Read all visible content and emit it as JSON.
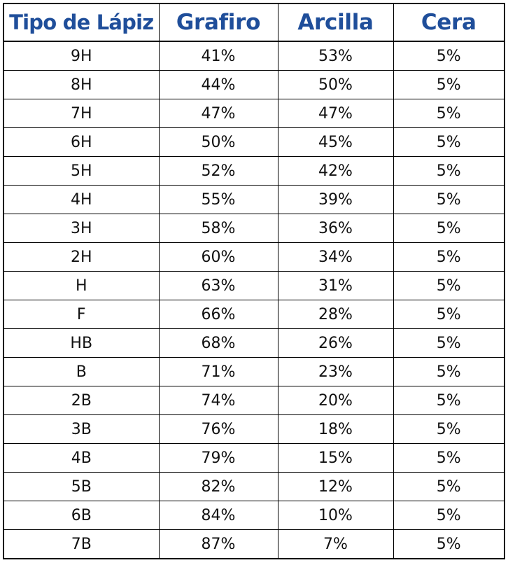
{
  "table": {
    "headers": [
      "Tipo de Lápiz",
      "Grafiro",
      "Arcilla",
      "Cera"
    ],
    "rows": [
      [
        "9H",
        "41%",
        "53%",
        "5%"
      ],
      [
        "8H",
        "44%",
        "50%",
        "5%"
      ],
      [
        "7H",
        "47%",
        "47%",
        "5%"
      ],
      [
        "6H",
        "50%",
        "45%",
        "5%"
      ],
      [
        "5H",
        "52%",
        "42%",
        "5%"
      ],
      [
        "4H",
        "55%",
        "39%",
        "5%"
      ],
      [
        "3H",
        "58%",
        "36%",
        "5%"
      ],
      [
        "2H",
        "60%",
        "34%",
        "5%"
      ],
      [
        "H",
        "63%",
        "31%",
        "5%"
      ],
      [
        "F",
        "66%",
        "28%",
        "5%"
      ],
      [
        "HB",
        "68%",
        "26%",
        "5%"
      ],
      [
        "B",
        "71%",
        "23%",
        "5%"
      ],
      [
        "2B",
        "74%",
        "20%",
        "5%"
      ],
      [
        "3B",
        "76%",
        "18%",
        "5%"
      ],
      [
        "4B",
        "79%",
        "15%",
        "5%"
      ],
      [
        "5B",
        "82%",
        "12%",
        "5%"
      ],
      [
        "6B",
        "84%",
        "10%",
        "5%"
      ],
      [
        "7B",
        "87%",
        "7%",
        "5%"
      ]
    ]
  },
  "colors": {
    "header_text": "#1f4e9a",
    "body_text": "#111111",
    "border": "#000000"
  }
}
